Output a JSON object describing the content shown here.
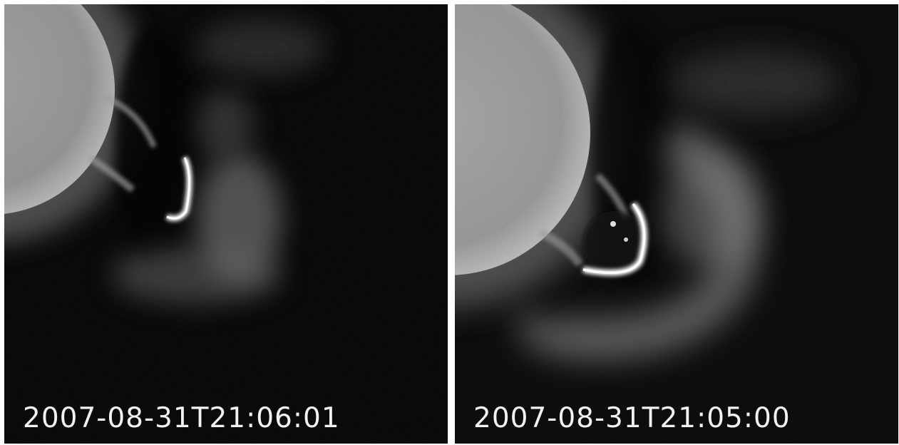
{
  "panels": [
    {
      "id": "left",
      "timestamp": "2007-08-31T21:06:01",
      "subject": "solar-limb-eruption"
    },
    {
      "id": "right",
      "timestamp": "2007-08-31T21:05:00",
      "subject": "solar-limb-eruption"
    }
  ],
  "colors": {
    "background": "#050505",
    "timestamp_text": "#f2f2f2",
    "separator": "#ffffff"
  }
}
